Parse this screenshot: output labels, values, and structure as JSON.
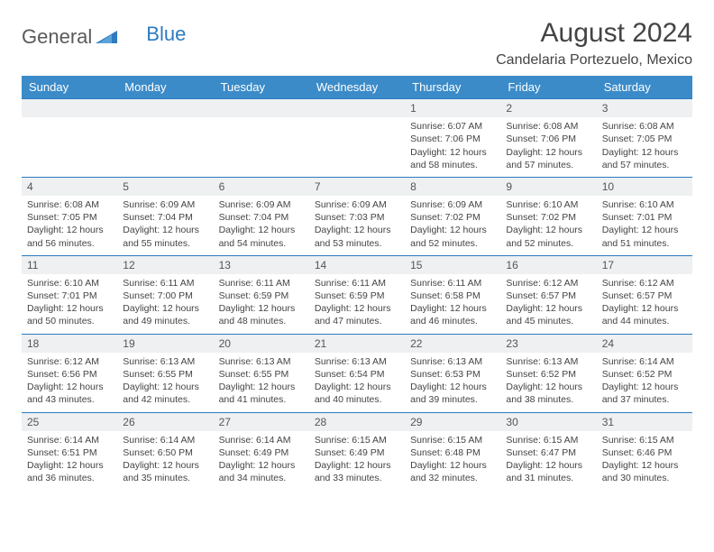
{
  "brand": {
    "word1": "General",
    "word2": "Blue"
  },
  "header": {
    "title": "August 2024",
    "location": "Candelaria Portezuelo, Mexico"
  },
  "colors": {
    "header_bg": "#3b8bc9",
    "border": "#2d7bc0",
    "daynum_bg": "#eef0f1",
    "text": "#444444"
  },
  "days": [
    "Sunday",
    "Monday",
    "Tuesday",
    "Wednesday",
    "Thursday",
    "Friday",
    "Saturday"
  ],
  "weeks": [
    [
      null,
      null,
      null,
      null,
      {
        "n": "1",
        "sr": "6:07 AM",
        "ss": "7:06 PM",
        "dl": "12 hours and 58 minutes."
      },
      {
        "n": "2",
        "sr": "6:08 AM",
        "ss": "7:06 PM",
        "dl": "12 hours and 57 minutes."
      },
      {
        "n": "3",
        "sr": "6:08 AM",
        "ss": "7:05 PM",
        "dl": "12 hours and 57 minutes."
      }
    ],
    [
      {
        "n": "4",
        "sr": "6:08 AM",
        "ss": "7:05 PM",
        "dl": "12 hours and 56 minutes."
      },
      {
        "n": "5",
        "sr": "6:09 AM",
        "ss": "7:04 PM",
        "dl": "12 hours and 55 minutes."
      },
      {
        "n": "6",
        "sr": "6:09 AM",
        "ss": "7:04 PM",
        "dl": "12 hours and 54 minutes."
      },
      {
        "n": "7",
        "sr": "6:09 AM",
        "ss": "7:03 PM",
        "dl": "12 hours and 53 minutes."
      },
      {
        "n": "8",
        "sr": "6:09 AM",
        "ss": "7:02 PM",
        "dl": "12 hours and 52 minutes."
      },
      {
        "n": "9",
        "sr": "6:10 AM",
        "ss": "7:02 PM",
        "dl": "12 hours and 52 minutes."
      },
      {
        "n": "10",
        "sr": "6:10 AM",
        "ss": "7:01 PM",
        "dl": "12 hours and 51 minutes."
      }
    ],
    [
      {
        "n": "11",
        "sr": "6:10 AM",
        "ss": "7:01 PM",
        "dl": "12 hours and 50 minutes."
      },
      {
        "n": "12",
        "sr": "6:11 AM",
        "ss": "7:00 PM",
        "dl": "12 hours and 49 minutes."
      },
      {
        "n": "13",
        "sr": "6:11 AM",
        "ss": "6:59 PM",
        "dl": "12 hours and 48 minutes."
      },
      {
        "n": "14",
        "sr": "6:11 AM",
        "ss": "6:59 PM",
        "dl": "12 hours and 47 minutes."
      },
      {
        "n": "15",
        "sr": "6:11 AM",
        "ss": "6:58 PM",
        "dl": "12 hours and 46 minutes."
      },
      {
        "n": "16",
        "sr": "6:12 AM",
        "ss": "6:57 PM",
        "dl": "12 hours and 45 minutes."
      },
      {
        "n": "17",
        "sr": "6:12 AM",
        "ss": "6:57 PM",
        "dl": "12 hours and 44 minutes."
      }
    ],
    [
      {
        "n": "18",
        "sr": "6:12 AM",
        "ss": "6:56 PM",
        "dl": "12 hours and 43 minutes."
      },
      {
        "n": "19",
        "sr": "6:13 AM",
        "ss": "6:55 PM",
        "dl": "12 hours and 42 minutes."
      },
      {
        "n": "20",
        "sr": "6:13 AM",
        "ss": "6:55 PM",
        "dl": "12 hours and 41 minutes."
      },
      {
        "n": "21",
        "sr": "6:13 AM",
        "ss": "6:54 PM",
        "dl": "12 hours and 40 minutes."
      },
      {
        "n": "22",
        "sr": "6:13 AM",
        "ss": "6:53 PM",
        "dl": "12 hours and 39 minutes."
      },
      {
        "n": "23",
        "sr": "6:13 AM",
        "ss": "6:52 PM",
        "dl": "12 hours and 38 minutes."
      },
      {
        "n": "24",
        "sr": "6:14 AM",
        "ss": "6:52 PM",
        "dl": "12 hours and 37 minutes."
      }
    ],
    [
      {
        "n": "25",
        "sr": "6:14 AM",
        "ss": "6:51 PM",
        "dl": "12 hours and 36 minutes."
      },
      {
        "n": "26",
        "sr": "6:14 AM",
        "ss": "6:50 PM",
        "dl": "12 hours and 35 minutes."
      },
      {
        "n": "27",
        "sr": "6:14 AM",
        "ss": "6:49 PM",
        "dl": "12 hours and 34 minutes."
      },
      {
        "n": "28",
        "sr": "6:15 AM",
        "ss": "6:49 PM",
        "dl": "12 hours and 33 minutes."
      },
      {
        "n": "29",
        "sr": "6:15 AM",
        "ss": "6:48 PM",
        "dl": "12 hours and 32 minutes."
      },
      {
        "n": "30",
        "sr": "6:15 AM",
        "ss": "6:47 PM",
        "dl": "12 hours and 31 minutes."
      },
      {
        "n": "31",
        "sr": "6:15 AM",
        "ss": "6:46 PM",
        "dl": "12 hours and 30 minutes."
      }
    ]
  ],
  "labels": {
    "sunrise": "Sunrise:",
    "sunset": "Sunset:",
    "daylight": "Daylight:"
  }
}
